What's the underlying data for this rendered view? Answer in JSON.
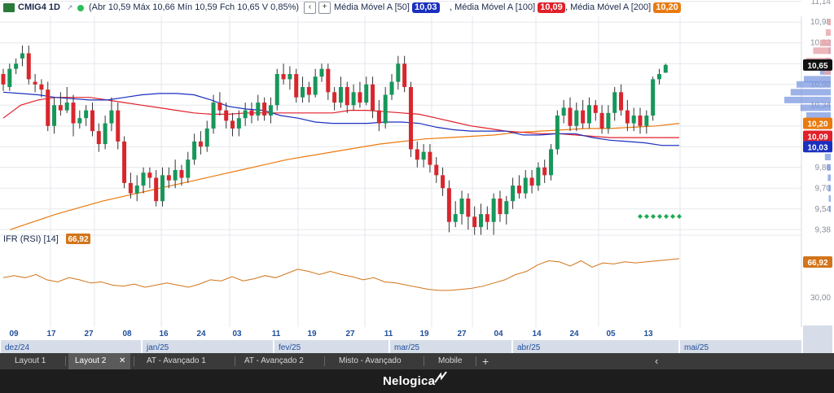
{
  "header": {
    "symbol": "CMIG4 1D",
    "ohlc_text": "(Abr 10,59 Máx 10,66 Mín 10,59 Fch 10,65 V 0,85%)",
    "collapse_btn": "‹",
    "add_btn": "+",
    "mas": [
      {
        "label": "Média Móvel A [50]",
        "value": "10,03",
        "color": "#1a2fbf"
      },
      {
        "label": "Média Móvel A [100]",
        "value": "10,09",
        "color": "#e0202a"
      },
      {
        "label": "Média Móvel A [200]",
        "value": "10,20",
        "color": "#ea7a10"
      }
    ],
    "last_price": "10,65"
  },
  "rsi": {
    "label": "IFR (RSI) [14]",
    "value": "66,92",
    "color": "#d2741a",
    "axis_tick": "30,00"
  },
  "chart_data": {
    "type": "candlestick",
    "price_ticks": [
      "11,14",
      "10,98",
      "10,82",
      "10,66",
      "10,50",
      "10,34",
      "10,18",
      "10,02",
      "9,86",
      "9,70",
      "9,54",
      "9,38"
    ],
    "x_ticks": [
      "09",
      "17",
      "27",
      "08",
      "16",
      "24",
      "03",
      "11",
      "19",
      "27",
      "11",
      "19",
      "27",
      "04",
      "14",
      "24",
      "05",
      "13"
    ],
    "months": [
      "dez/24",
      "jan/25",
      "fev/25",
      "mar/25",
      "abr/25",
      "mai/25"
    ],
    "candles": [
      [
        10.58,
        10.5,
        10.62,
        10.45
      ],
      [
        10.48,
        10.62,
        10.66,
        10.45
      ],
      [
        10.62,
        10.66,
        10.7,
        10.58
      ],
      [
        10.7,
        10.74,
        10.8,
        10.64
      ],
      [
        10.74,
        10.54,
        10.8,
        10.5
      ],
      [
        10.52,
        10.5,
        10.58,
        10.44
      ],
      [
        10.5,
        10.46,
        10.54,
        10.4
      ],
      [
        10.46,
        10.18,
        10.52,
        10.14
      ],
      [
        10.18,
        10.34,
        10.4,
        10.12
      ],
      [
        10.34,
        10.3,
        10.44,
        10.26
      ],
      [
        10.3,
        10.36,
        10.48,
        10.28
      ],
      [
        10.36,
        10.2,
        10.42,
        10.1
      ],
      [
        10.2,
        10.24,
        10.3,
        10.16
      ],
      [
        10.24,
        10.3,
        10.34,
        10.18
      ],
      [
        10.3,
        10.14,
        10.36,
        10.1
      ],
      [
        10.14,
        10.04,
        10.2,
        9.98
      ],
      [
        10.04,
        10.2,
        10.26,
        10.0
      ],
      [
        10.2,
        10.3,
        10.4,
        10.14
      ],
      [
        10.3,
        10.06,
        10.36,
        10.0
      ],
      [
        10.06,
        9.74,
        10.1,
        9.7
      ],
      [
        9.74,
        9.66,
        9.82,
        9.62
      ],
      [
        9.66,
        9.72,
        9.8,
        9.6
      ],
      [
        9.72,
        9.82,
        9.86,
        9.66
      ],
      [
        9.82,
        9.78,
        9.86,
        9.7
      ],
      [
        9.78,
        9.6,
        9.84,
        9.56
      ],
      [
        9.6,
        9.8,
        9.86,
        9.56
      ],
      [
        9.8,
        9.76,
        9.86,
        9.7
      ],
      [
        9.76,
        9.84,
        9.92,
        9.7
      ],
      [
        9.84,
        9.78,
        9.88,
        9.72
      ],
      [
        9.78,
        9.92,
        9.98,
        9.74
      ],
      [
        9.92,
        10.06,
        10.12,
        9.88
      ],
      [
        10.06,
        10.02,
        10.14,
        9.96
      ],
      [
        10.02,
        10.16,
        10.22,
        9.98
      ],
      [
        10.16,
        10.36,
        10.42,
        10.12
      ],
      [
        10.36,
        10.3,
        10.44,
        10.26
      ],
      [
        10.3,
        10.22,
        10.36,
        10.16
      ],
      [
        10.22,
        10.16,
        10.28,
        10.1
      ],
      [
        10.16,
        10.24,
        10.3,
        10.1
      ],
      [
        10.24,
        10.3,
        10.36,
        10.18
      ],
      [
        10.3,
        10.26,
        10.36,
        10.2
      ],
      [
        10.26,
        10.36,
        10.42,
        10.22
      ],
      [
        10.36,
        10.26,
        10.4,
        10.22
      ],
      [
        10.26,
        10.34,
        10.4,
        10.2
      ],
      [
        10.34,
        10.58,
        10.62,
        10.3
      ],
      [
        10.58,
        10.54,
        10.66,
        10.5
      ],
      [
        10.54,
        10.58,
        10.64,
        10.46
      ],
      [
        10.58,
        10.4,
        10.62,
        10.36
      ],
      [
        10.4,
        10.48,
        10.56,
        10.36
      ],
      [
        10.48,
        10.42,
        10.52,
        10.36
      ],
      [
        10.42,
        10.56,
        10.62,
        10.4
      ],
      [
        10.56,
        10.62,
        10.66,
        10.52
      ],
      [
        10.62,
        10.44,
        10.66,
        10.38
      ],
      [
        10.44,
        10.36,
        10.48,
        10.3
      ],
      [
        10.36,
        10.48,
        10.56,
        10.32
      ],
      [
        10.48,
        10.34,
        10.52,
        10.28
      ],
      [
        10.34,
        10.44,
        10.5,
        10.3
      ],
      [
        10.44,
        10.36,
        10.52,
        10.32
      ],
      [
        10.36,
        10.5,
        10.56,
        10.34
      ],
      [
        10.5,
        10.3,
        10.56,
        10.24
      ],
      [
        10.3,
        10.2,
        10.38,
        10.14
      ],
      [
        10.2,
        10.42,
        10.48,
        10.16
      ],
      [
        10.42,
        10.52,
        10.58,
        10.38
      ],
      [
        10.52,
        10.66,
        10.72,
        10.46
      ],
      [
        10.66,
        10.48,
        10.72,
        10.44
      ],
      [
        10.48,
        10.0,
        10.52,
        9.94
      ],
      [
        10.0,
        9.92,
        10.06,
        9.86
      ],
      [
        9.92,
        9.98,
        10.04,
        9.86
      ],
      [
        9.98,
        9.88,
        10.04,
        9.82
      ],
      [
        9.88,
        9.8,
        9.94,
        9.74
      ],
      [
        9.8,
        9.7,
        9.86,
        9.64
      ],
      [
        9.7,
        9.44,
        9.76,
        9.36
      ],
      [
        9.44,
        9.5,
        9.6,
        9.4
      ],
      [
        9.5,
        9.62,
        9.68,
        9.42
      ],
      [
        9.62,
        9.48,
        9.66,
        9.38
      ],
      [
        9.48,
        9.4,
        9.56,
        9.34
      ],
      [
        9.4,
        9.5,
        9.58,
        9.34
      ],
      [
        9.5,
        9.44,
        9.56,
        9.38
      ],
      [
        9.44,
        9.62,
        9.66,
        9.34
      ],
      [
        9.62,
        9.5,
        9.68,
        9.44
      ],
      [
        9.5,
        9.6,
        9.64,
        9.42
      ],
      [
        9.6,
        9.72,
        9.78,
        9.54
      ],
      [
        9.72,
        9.66,
        9.8,
        9.62
      ],
      [
        9.66,
        9.78,
        9.84,
        9.62
      ],
      [
        9.78,
        9.72,
        9.84,
        9.66
      ],
      [
        9.72,
        9.86,
        9.9,
        9.68
      ],
      [
        9.86,
        9.8,
        9.92,
        9.74
      ],
      [
        9.8,
        10.0,
        10.04,
        9.76
      ],
      [
        10.0,
        10.26,
        10.3,
        9.96
      ],
      [
        10.26,
        10.32,
        10.38,
        10.2
      ],
      [
        10.32,
        10.18,
        10.4,
        10.14
      ],
      [
        10.18,
        10.3,
        10.36,
        10.14
      ],
      [
        10.3,
        10.2,
        10.38,
        10.16
      ],
      [
        10.2,
        10.34,
        10.4,
        10.16
      ],
      [
        10.34,
        10.28,
        10.38,
        10.22
      ],
      [
        10.28,
        10.16,
        10.34,
        10.12
      ],
      [
        10.16,
        10.28,
        10.34,
        10.12
      ],
      [
        10.28,
        10.44,
        10.48,
        10.22
      ],
      [
        10.44,
        10.3,
        10.5,
        10.26
      ],
      [
        10.3,
        10.2,
        10.38,
        10.14
      ],
      [
        10.2,
        10.26,
        10.32,
        10.14
      ],
      [
        10.26,
        10.18,
        10.32,
        10.12
      ],
      [
        10.18,
        10.26,
        10.3,
        10.12
      ],
      [
        10.26,
        10.54,
        10.56,
        10.22
      ],
      [
        10.54,
        10.58,
        10.62,
        10.5
      ],
      [
        10.59,
        10.65,
        10.66,
        10.59
      ]
    ],
    "ma50": [
      10.44,
      10.43,
      10.42,
      10.4,
      10.39,
      10.38,
      10.38,
      10.4,
      10.42,
      10.43,
      10.43,
      10.42,
      10.38,
      10.33,
      10.31,
      10.3,
      10.26,
      10.24,
      10.21,
      10.2,
      10.2,
      10.2,
      10.21,
      10.21,
      10.2,
      10.17,
      10.15,
      10.14,
      10.14,
      10.14,
      10.11,
      10.11,
      10.12,
      10.12,
      10.09,
      10.07,
      10.06,
      10.05,
      10.03,
      10.03
    ],
    "ma100": [
      10.24,
      10.34,
      10.38,
      10.4,
      10.4,
      10.4,
      10.38,
      10.36,
      10.34,
      10.32,
      10.3,
      10.28,
      10.27,
      10.27,
      10.28,
      10.28,
      10.28,
      10.28,
      10.28,
      10.28,
      10.3,
      10.3,
      10.29,
      10.28,
      10.27,
      10.24,
      10.21,
      10.18,
      10.16,
      10.14,
      10.13,
      10.12,
      10.12,
      10.11,
      10.1,
      10.09,
      10.09,
      10.09,
      10.09,
      10.09
    ],
    "ma200": [
      9.38,
      9.44,
      9.5,
      9.55,
      9.6,
      9.64,
      9.68,
      9.72,
      9.76,
      9.8,
      9.84,
      9.88,
      9.92,
      9.95,
      9.98,
      10.01,
      10.04,
      10.06,
      10.08,
      10.09,
      10.1,
      10.11,
      10.13,
      10.14,
      10.15,
      10.16,
      10.16,
      10.17,
      10.18,
      10.2
    ],
    "rsi_values": [
      49,
      51,
      49,
      52,
      47,
      45,
      49,
      47,
      44,
      45,
      42,
      41,
      43,
      40,
      42,
      44,
      42,
      40,
      43,
      47,
      46,
      50,
      46,
      48,
      51,
      49,
      53,
      57,
      55,
      52,
      55,
      52,
      50,
      47,
      49,
      45,
      44,
      42,
      40,
      38,
      37,
      37,
      38,
      39,
      41,
      44,
      47,
      52,
      55,
      61,
      65,
      64,
      60,
      65,
      59,
      63,
      62,
      64,
      63,
      64,
      65,
      66,
      67
    ]
  },
  "tabs": [
    {
      "label": "Layout 1",
      "active": false
    },
    {
      "label": "Layout 2",
      "active": true,
      "close": "✕"
    },
    {
      "label": "AT - Avançado 1",
      "active": false
    },
    {
      "label": "AT - Avançado 2",
      "active": false
    },
    {
      "label": "Misto - Avançado",
      "active": false
    },
    {
      "label": "Mobile",
      "active": false
    }
  ],
  "tab_controls": {
    "add": "+",
    "collapse": "‹"
  },
  "footer": {
    "brand": "Nelogica"
  },
  "colors": {
    "up": "#17975a",
    "down": "#d9262d",
    "grid": "#e5e7ec",
    "axis_text": "#8a8f99",
    "date_text": "#1f4e9a",
    "month_bg": "#d6dde9",
    "volume_profile_up": "#7b98e0",
    "volume_profile_down": "#e8a4a9",
    "marker": "#1faa52"
  }
}
